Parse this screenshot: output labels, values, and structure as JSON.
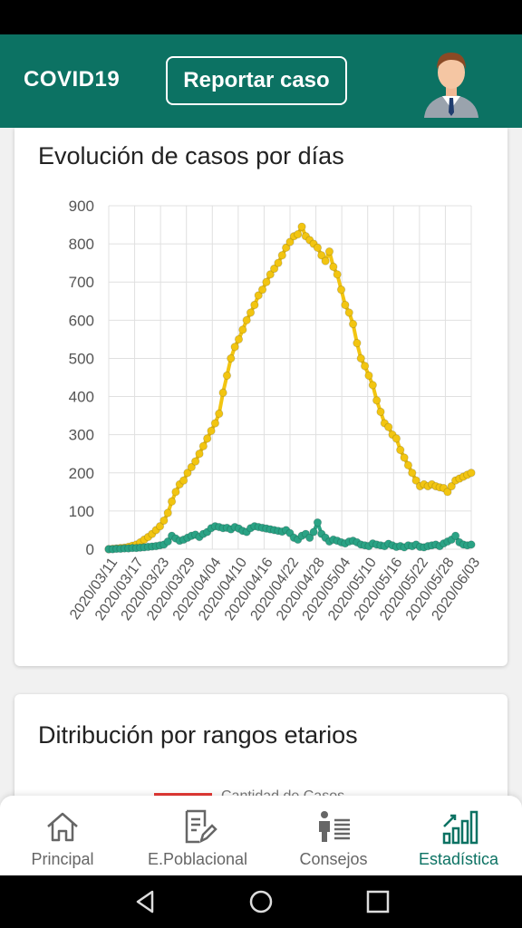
{
  "app_bar": {
    "title": "COVID19",
    "report_button": "Reportar caso",
    "color": "#0c7263"
  },
  "card1": {
    "title": "Evolución de casos por días"
  },
  "card2": {
    "title": "Ditribución por rangos etarios",
    "legend_label": "Cantidad de Casos",
    "legend_color": "#e53935"
  },
  "bottom_nav": {
    "items": [
      {
        "label": "Principal",
        "icon": "home-icon",
        "active": false
      },
      {
        "label": "E.Poblacional",
        "icon": "document-edit-icon",
        "active": false
      },
      {
        "label": "Consejos",
        "icon": "people-list-icon",
        "active": false
      },
      {
        "label": "Estadística",
        "icon": "bar-chart-icon",
        "active": true
      }
    ],
    "active_color": "#0c7263"
  },
  "chart_data": {
    "type": "line",
    "title": "",
    "xlabel": "",
    "ylabel": "",
    "ylim": [
      0,
      900
    ],
    "yticks": [
      0,
      100,
      200,
      300,
      400,
      500,
      600,
      700,
      800,
      900
    ],
    "xtick_labels": [
      "2020/03/11",
      "2020/03/17",
      "2020/03/23",
      "2020/03/29",
      "2020/04/04",
      "2020/04/10",
      "2020/04/16",
      "2020/04/22",
      "2020/04/28",
      "2020/05/04",
      "2020/05/10",
      "2020/05/16",
      "2020/05/22",
      "2020/05/28",
      "2020/06/03"
    ],
    "grid": true,
    "series": [
      {
        "color": "#f2c511",
        "values": [
          0,
          1,
          2,
          3,
          4,
          6,
          9,
          12,
          18,
          25,
          32,
          40,
          50,
          60,
          75,
          95,
          125,
          150,
          170,
          180,
          200,
          215,
          230,
          250,
          270,
          290,
          310,
          330,
          355,
          410,
          455,
          500,
          530,
          550,
          575,
          600,
          620,
          640,
          665,
          680,
          700,
          720,
          735,
          750,
          770,
          790,
          805,
          820,
          825,
          845,
          820,
          810,
          800,
          790,
          770,
          755,
          780,
          740,
          720,
          680,
          640,
          620,
          590,
          540,
          500,
          480,
          455,
          430,
          390,
          360,
          330,
          320,
          300,
          290,
          260,
          240,
          220,
          200,
          180,
          165,
          170,
          165,
          170,
          165,
          162,
          160,
          150,
          165,
          180,
          185,
          190,
          195,
          200
        ]
      },
      {
        "color": "#2aa385",
        "values": [
          0,
          0,
          1,
          1,
          2,
          2,
          3,
          3,
          4,
          5,
          6,
          7,
          8,
          10,
          12,
          20,
          35,
          28,
          22,
          25,
          30,
          35,
          38,
          32,
          40,
          45,
          55,
          60,
          58,
          55,
          56,
          52,
          58,
          54,
          48,
          45,
          55,
          60,
          58,
          56,
          54,
          52,
          50,
          48,
          46,
          50,
          42,
          30,
          25,
          35,
          40,
          30,
          45,
          70,
          40,
          30,
          20,
          25,
          22,
          18,
          15,
          20,
          22,
          18,
          12,
          10,
          8,
          15,
          12,
          10,
          8,
          14,
          10,
          6,
          8,
          5,
          10,
          8,
          12,
          6,
          5,
          8,
          10,
          12,
          8,
          15,
          20,
          25,
          35,
          18,
          12,
          10,
          12
        ]
      }
    ]
  }
}
